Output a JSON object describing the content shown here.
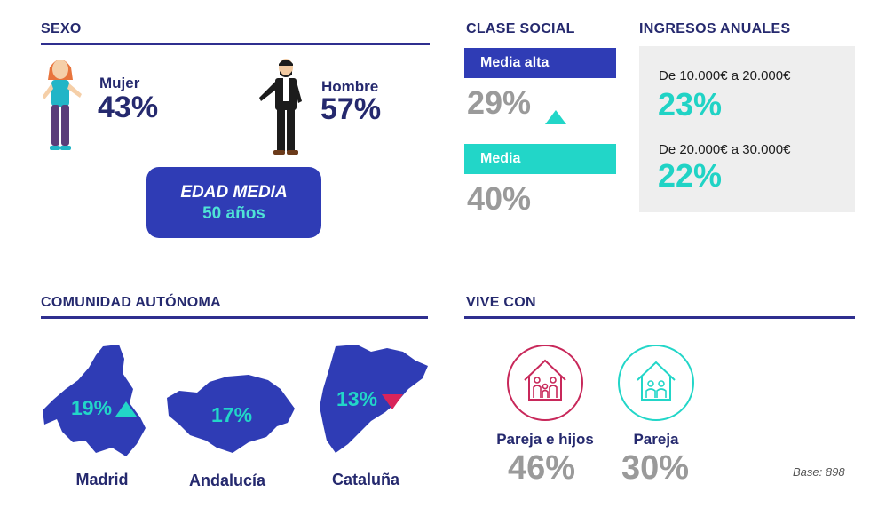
{
  "sexo": {
    "title": "SEXO",
    "mujer_label": "Mujer",
    "mujer_pct": "43%",
    "hombre_label": "Hombre",
    "hombre_pct": "57%",
    "edad_title": "EDAD MEDIA",
    "edad_value": "50 años"
  },
  "clase_social": {
    "title": "CLASE SOCIAL",
    "items": [
      {
        "label": "Media alta",
        "pct": "29%",
        "trend": "up",
        "color": "#2f3cb5"
      },
      {
        "label": "Media",
        "pct": "40%",
        "trend": "none",
        "color": "#22d6c8"
      }
    ]
  },
  "ingresos": {
    "title": "INGRESOS ANUALES",
    "items": [
      {
        "label": "De 10.000€ a 20.000€",
        "pct": "23%"
      },
      {
        "label": "De 20.000€ a 30.000€",
        "pct": "22%"
      }
    ]
  },
  "comunidad": {
    "title": "COMUNIDAD AUTÓNOMA",
    "regions": [
      {
        "name": "Madrid",
        "pct": "19%",
        "trend": "up"
      },
      {
        "name": "Andalucía",
        "pct": "17%",
        "trend": "none"
      },
      {
        "name": "Cataluña",
        "pct": "13%",
        "trend": "down"
      }
    ]
  },
  "vive_con": {
    "title": "VIVE CON",
    "items": [
      {
        "label": "Pareja e hijos",
        "pct": "46%",
        "icon": "family-house-icon",
        "color": "#c8285a"
      },
      {
        "label": "Pareja",
        "pct": "30%",
        "icon": "couple-house-icon",
        "color": "#22d6c8"
      }
    ]
  },
  "base": "Base: 898",
  "colors": {
    "navy": "#25296e",
    "royal_blue": "#2f3cb5",
    "teal": "#22d6c8",
    "grey": "#9a9a9a",
    "crimson": "#d8245a"
  }
}
